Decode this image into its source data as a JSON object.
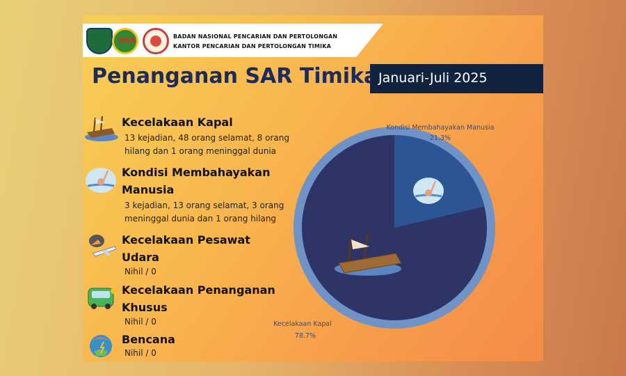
{
  "header": {
    "agency_line1": "BADAN NASIONAL PENCARIAN DAN PERTOLONGAN",
    "agency_line2": "KANTOR PENCARIAN DAN PERTOLONGAN TIMIKA",
    "logo_sar_text": "SAR",
    "title": "Penanganan SAR Timika",
    "period": "Januari-Juli 2025"
  },
  "categories": [
    {
      "icon": "sinking-ship-icon",
      "title_lines": [
        "Kecelakaan  Kapal"
      ],
      "desc_lines": [
        "13 kejadian, 48 orang selamat, 8 orang",
        "hilang dan 1 orang meninggal dunia"
      ]
    },
    {
      "icon": "drowning-person-icon",
      "title_lines": [
        "Kondisi Membahayakan",
        "Manusia"
      ],
      "desc_lines": [
        "3 kejadian, 13 orang selamat,  3 orang",
        "meninggal dunia dan 1 orang hilang"
      ]
    },
    {
      "icon": "plane-crash-icon",
      "title_lines": [
        "Kecelakaan Pesawat",
        "Udara"
      ],
      "desc_lines": [
        "Nihil / 0"
      ]
    },
    {
      "icon": "vehicle-accident-icon",
      "title_lines": [
        "Kecelakaan Penanganan",
        "Khusus"
      ],
      "desc_lines": [
        "Nihil / 0"
      ]
    },
    {
      "icon": "disaster-icon",
      "title_lines": [
        "Bencana"
      ],
      "desc_lines": [
        "Nihil / 0"
      ]
    }
  ],
  "chart_data": {
    "type": "pie",
    "title": "",
    "slices": [
      {
        "label": "Kondisi Membahayakan Manusia",
        "value": 21.3,
        "value_label": "21.3%",
        "color": "#2b5594"
      },
      {
        "label": "Kecelakaan Kapal",
        "value": 78.7,
        "value_label": "78.7%",
        "color": "#2e3466"
      }
    ],
    "ring_color": "#6f93c6",
    "label_color": "#3d4a78"
  }
}
